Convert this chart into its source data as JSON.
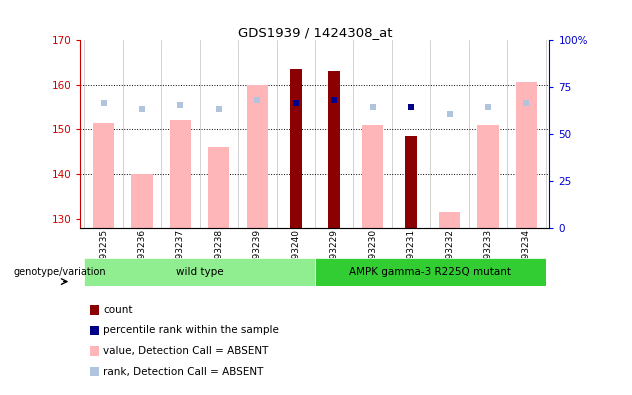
{
  "title": "GDS1939 / 1424308_at",
  "samples": [
    "GSM93235",
    "GSM93236",
    "GSM93237",
    "GSM93238",
    "GSM93239",
    "GSM93240",
    "GSM93229",
    "GSM93230",
    "GSM93231",
    "GSM93232",
    "GSM93233",
    "GSM93234"
  ],
  "ylim_left": [
    128,
    170
  ],
  "ylim_right": [
    0,
    100
  ],
  "yticks_left": [
    130,
    140,
    150,
    160,
    170
  ],
  "yticks_right": [
    0,
    25,
    50,
    75,
    100
  ],
  "ytick_labels_right": [
    "0",
    "25",
    "50",
    "75",
    "100%"
  ],
  "count_values": [
    null,
    null,
    null,
    null,
    null,
    163.5,
    163.0,
    null,
    148.5,
    null,
    null,
    null
  ],
  "rank_values": [
    null,
    null,
    null,
    null,
    null,
    156.0,
    156.5,
    null,
    155.0,
    null,
    null,
    null
  ],
  "pink_bar_values": [
    151.5,
    140.0,
    152.0,
    146.0,
    160.0,
    null,
    null,
    151.0,
    null,
    131.5,
    151.0,
    160.5
  ],
  "light_blue_marker_values": [
    156.0,
    154.5,
    155.5,
    154.5,
    156.5,
    null,
    null,
    155.0,
    null,
    153.5,
    155.0,
    156.0
  ],
  "count_color": "#8b0000",
  "rank_color": "#00008b",
  "pink_color": "#ffb6b9",
  "light_blue_color": "#b0c4de",
  "axis_color_left": "#cc0000",
  "axis_color_right": "#0000cc",
  "bg_color": "#ffffff",
  "wt_color": "#90EE90",
  "mut_color": "#32CD32",
  "legend_items": [
    {
      "label": "count",
      "color": "#8b0000"
    },
    {
      "label": "percentile rank within the sample",
      "color": "#00008b"
    },
    {
      "label": "value, Detection Call = ABSENT",
      "color": "#ffb6b9"
    },
    {
      "label": "rank, Detection Call = ABSENT",
      "color": "#b0c4de"
    }
  ]
}
